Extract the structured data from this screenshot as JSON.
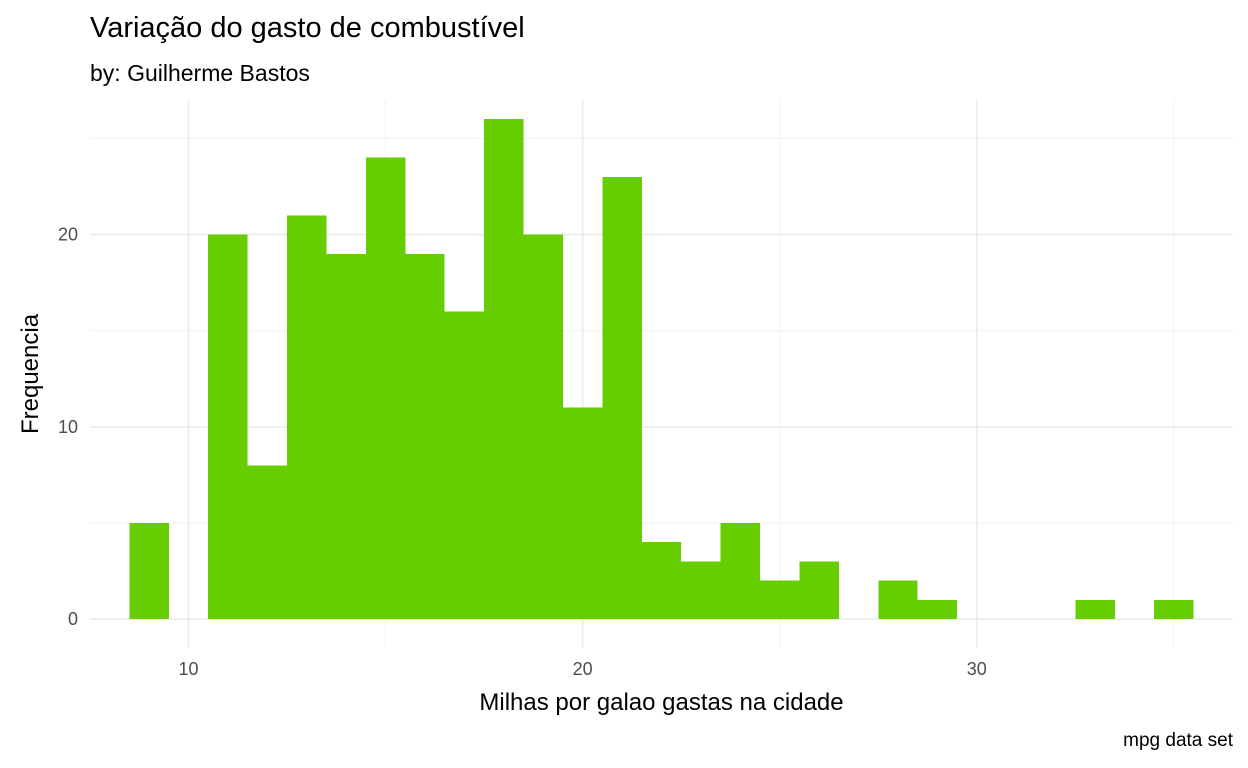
{
  "chart_data": {
    "type": "bar",
    "title": "Variação do gasto de combustível",
    "subtitle": "by: Guilherme Bastos",
    "caption": "mpg data set",
    "xlabel": "Milhas por galao gastas na cidade",
    "ylabel": "Frequencia",
    "bar_color": "#66CD00",
    "grid": true,
    "xlim": [
      7.5,
      36.5
    ],
    "ylim": [
      -1.5,
      27
    ],
    "x_ticks": [
      10,
      20,
      30
    ],
    "y_ticks": [
      0,
      10,
      20
    ],
    "bin_width": 1,
    "bins": [
      {
        "x": 9,
        "count": 5
      },
      {
        "x": 10,
        "count": 0
      },
      {
        "x": 11,
        "count": 20
      },
      {
        "x": 12,
        "count": 8
      },
      {
        "x": 13,
        "count": 21
      },
      {
        "x": 14,
        "count": 19
      },
      {
        "x": 15,
        "count": 24
      },
      {
        "x": 16,
        "count": 19
      },
      {
        "x": 17,
        "count": 16
      },
      {
        "x": 18,
        "count": 26
      },
      {
        "x": 19,
        "count": 20
      },
      {
        "x": 20,
        "count": 11
      },
      {
        "x": 21,
        "count": 23
      },
      {
        "x": 22,
        "count": 4
      },
      {
        "x": 23,
        "count": 3
      },
      {
        "x": 24,
        "count": 5
      },
      {
        "x": 25,
        "count": 2
      },
      {
        "x": 26,
        "count": 3
      },
      {
        "x": 27,
        "count": 0
      },
      {
        "x": 28,
        "count": 2
      },
      {
        "x": 29,
        "count": 1
      },
      {
        "x": 30,
        "count": 0
      },
      {
        "x": 31,
        "count": 0
      },
      {
        "x": 32,
        "count": 0
      },
      {
        "x": 33,
        "count": 1
      },
      {
        "x": 34,
        "count": 0
      },
      {
        "x": 35,
        "count": 1
      }
    ]
  }
}
